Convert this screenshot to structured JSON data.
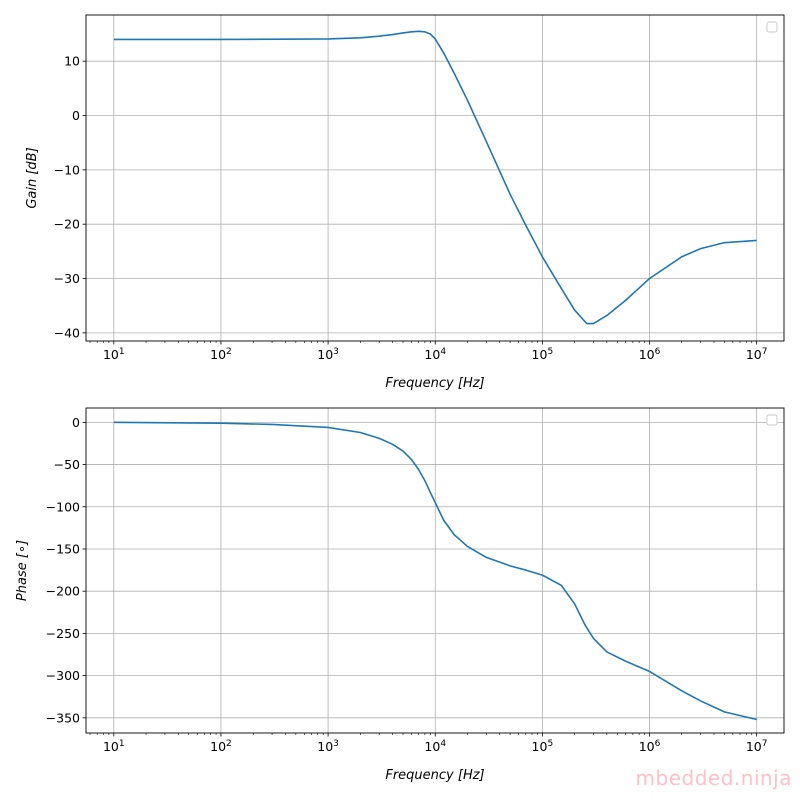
{
  "chart_data": [
    {
      "type": "line",
      "xscale": "log",
      "xlim": [
        5.5,
        18000000
      ],
      "ylim": [
        -41.5,
        18.5
      ],
      "grid": true,
      "legend": {
        "placement": "top-right",
        "entries": [
          ""
        ]
      },
      "xlabel": "Frequency [Hz]",
      "ylabel": "Gain [dB]",
      "xticks": [
        10,
        100,
        1000,
        10000,
        100000,
        1000000,
        10000000
      ],
      "xtick_labels": [
        {
          "base": "10",
          "exp": "1"
        },
        {
          "base": "10",
          "exp": "2"
        },
        {
          "base": "10",
          "exp": "3"
        },
        {
          "base": "10",
          "exp": "4"
        },
        {
          "base": "10",
          "exp": "5"
        },
        {
          "base": "10",
          "exp": "6"
        },
        {
          "base": "10",
          "exp": "7"
        }
      ],
      "yticks": [
        10,
        0,
        -10,
        -20,
        -30,
        -40
      ],
      "ytick_labels": [
        "10",
        "0",
        "−10",
        "−20",
        "−30",
        "−40"
      ],
      "series": [
        {
          "color": "#1f77b4",
          "x": [
            10,
            100,
            1000,
            2000,
            3000,
            4000,
            5000,
            6000,
            7000,
            8000,
            9000,
            10000,
            12000,
            15000,
            20000,
            30000,
            50000,
            70000,
            100000,
            150000,
            200000,
            260000,
            300000,
            400000,
            600000,
            1000000,
            2000000,
            3000000,
            5000000,
            10000000
          ],
          "y": [
            14,
            14,
            14.1,
            14.3,
            14.6,
            14.9,
            15.2,
            15.4,
            15.5,
            15.4,
            15,
            14.1,
            11.5,
            7.8,
            2.8,
            -4.8,
            -14.5,
            -20.2,
            -26,
            -31.8,
            -35.8,
            -38.3,
            -38.3,
            -36.8,
            -34,
            -30,
            -26,
            -24.5,
            -23.4,
            -23
          ]
        }
      ]
    },
    {
      "type": "line",
      "xscale": "log",
      "xlim": [
        5.5,
        18000000
      ],
      "ylim": [
        -368,
        17
      ],
      "grid": true,
      "legend": {
        "placement": "top-right",
        "entries": [
          ""
        ]
      },
      "xlabel": "Frequency [Hz]",
      "ylabel": "Phase [∘]",
      "xticks": [
        10,
        100,
        1000,
        10000,
        100000,
        1000000,
        10000000
      ],
      "xtick_labels": [
        {
          "base": "10",
          "exp": "1"
        },
        {
          "base": "10",
          "exp": "2"
        },
        {
          "base": "10",
          "exp": "3"
        },
        {
          "base": "10",
          "exp": "4"
        },
        {
          "base": "10",
          "exp": "5"
        },
        {
          "base": "10",
          "exp": "6"
        },
        {
          "base": "10",
          "exp": "7"
        }
      ],
      "yticks": [
        0,
        -50,
        -100,
        -150,
        -200,
        -250,
        -300,
        -350
      ],
      "ytick_labels": [
        "0",
        "−50",
        "−100",
        "−150",
        "−200",
        "−250",
        "−300",
        "−350"
      ],
      "series": [
        {
          "color": "#1f77b4",
          "x": [
            10,
            100,
            300,
            1000,
            2000,
            3000,
            4000,
            5000,
            6000,
            7000,
            8000,
            9000,
            10000,
            12000,
            15000,
            20000,
            30000,
            50000,
            70000,
            100000,
            150000,
            200000,
            250000,
            300000,
            400000,
            600000,
            1000000,
            2000000,
            3000000,
            5000000,
            10000000
          ],
          "y": [
            0,
            -1,
            -2.5,
            -6,
            -12,
            -19,
            -26,
            -34,
            -44,
            -56,
            -69,
            -83,
            -95,
            -116,
            -133,
            -147,
            -160,
            -170,
            -175,
            -181,
            -193,
            -215,
            -240,
            -256,
            -272,
            -283,
            -295,
            -318,
            -330,
            -343,
            -352
          ]
        }
      ]
    }
  ],
  "watermark": "mbedded.ninja"
}
